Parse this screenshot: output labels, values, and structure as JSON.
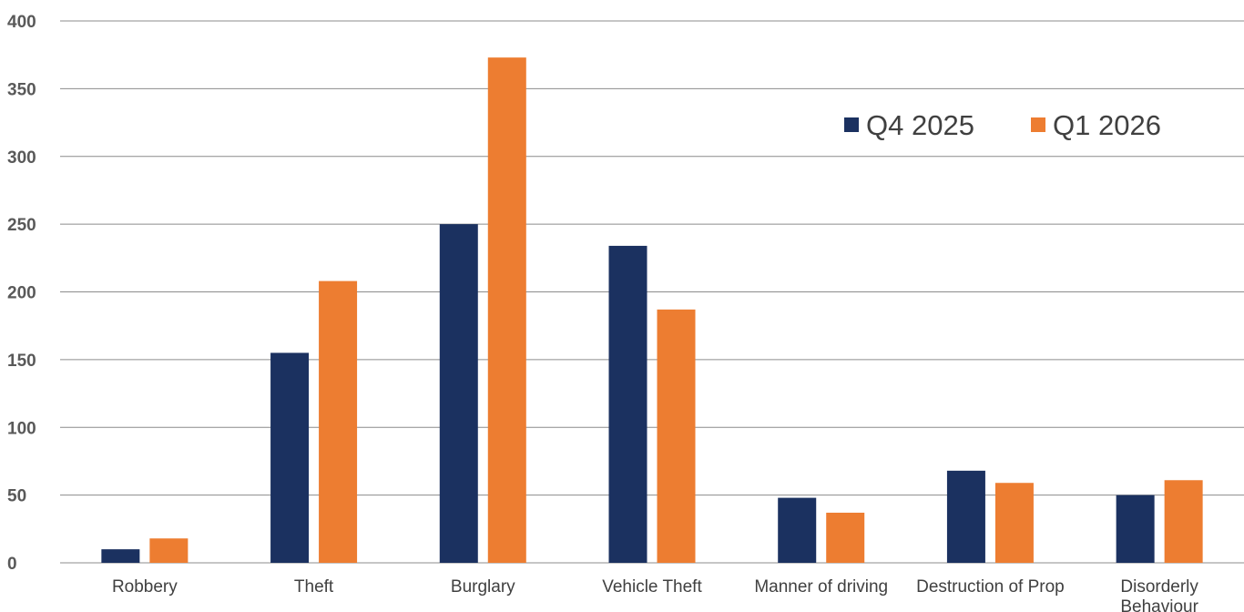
{
  "chart_data": {
    "type": "bar",
    "categories": [
      "Robbery",
      "Theft",
      "Burglary",
      "Vehicle Theft",
      "Manner of driving",
      "Destruction of Prop",
      "Disorderly Behaviour"
    ],
    "category_lines": [
      [
        "Robbery"
      ],
      [
        "Theft"
      ],
      [
        "Burglary"
      ],
      [
        "Vehicle Theft"
      ],
      [
        "Manner of driving"
      ],
      [
        "Destruction of Prop"
      ],
      [
        "Disorderly",
        "Behaviour"
      ]
    ],
    "series": [
      {
        "name": "Q4 2025",
        "color": "#1b3160",
        "values": [
          10,
          155,
          250,
          234,
          48,
          68,
          50
        ]
      },
      {
        "name": "Q1 2026",
        "color": "#ed7d31",
        "values": [
          18,
          208,
          373,
          187,
          37,
          59,
          61
        ]
      }
    ],
    "title": "",
    "xlabel": "",
    "ylabel": "",
    "ylim": [
      0,
      400
    ],
    "yticks": [
      "0",
      "50",
      "100",
      "150",
      "200",
      "250",
      "300",
      "350",
      "400"
    ],
    "grid": true,
    "legend_position": "top-right"
  }
}
